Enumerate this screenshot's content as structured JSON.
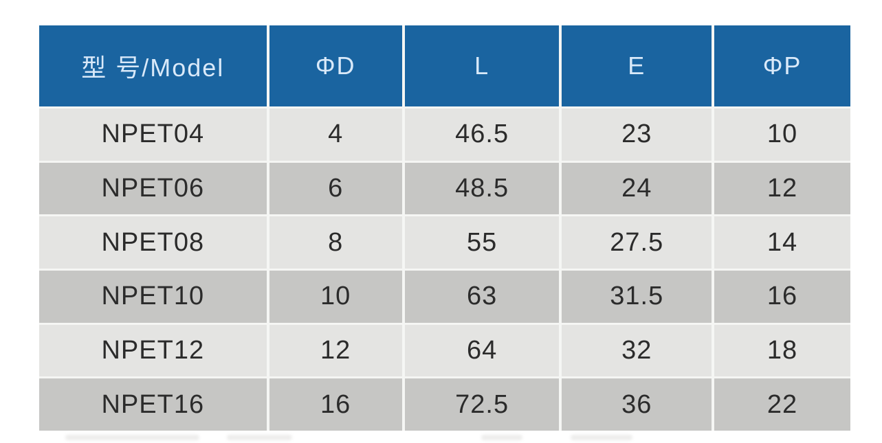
{
  "table": {
    "columns": [
      "型 号/Model",
      "ΦD",
      "L",
      "E",
      "ΦP"
    ],
    "rows": [
      {
        "model": "NPET04",
        "values": [
          "4",
          "46.5",
          "23",
          "10"
        ]
      },
      {
        "model": "NPET06",
        "values": [
          "6",
          "48.5",
          "24",
          "12"
        ]
      },
      {
        "model": "NPET08",
        "values": [
          "8",
          "55",
          "27.5",
          "14"
        ]
      },
      {
        "model": "NPET10",
        "values": [
          "10",
          "63",
          "31.5",
          "16"
        ]
      },
      {
        "model": "NPET12",
        "values": [
          "12",
          "64",
          "32",
          "18"
        ]
      },
      {
        "model": "NPET16",
        "values": [
          "16",
          "72.5",
          "36",
          "22"
        ]
      }
    ]
  },
  "colors": {
    "header_background": "#1a64a0",
    "header_text": "#d9e9f9",
    "row_light": "#e4e4e2",
    "row_dark": "#c6c6c4",
    "body_text": "#2b2b2b",
    "grid_line": "#f5f6f4"
  }
}
